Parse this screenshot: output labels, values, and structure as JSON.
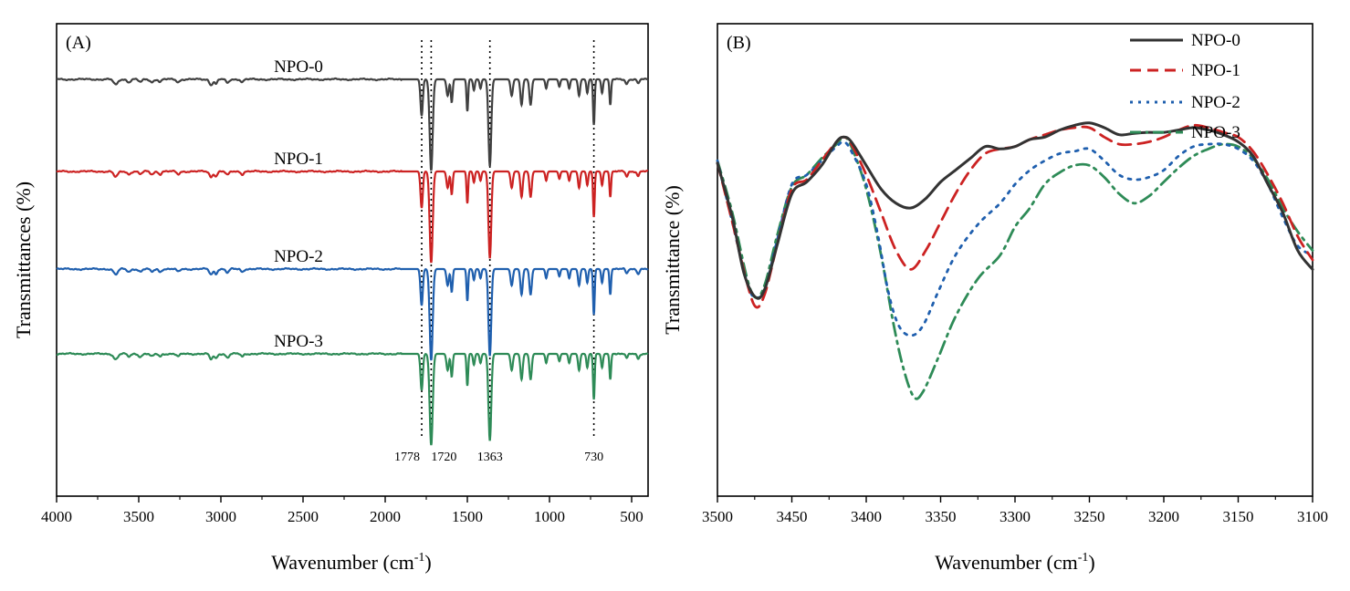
{
  "chart_data": [
    {
      "panel": "A",
      "type": "line",
      "panel_label": "(A)",
      "xlabel": "Wavenumber (cm",
      "xlabel_sup": "-1",
      "xlabel_close": ")",
      "ylabel": "Transmittances (%)",
      "xlim": [
        4000,
        400
      ],
      "x_reversed": true,
      "xticks": [
        4000,
        3500,
        3000,
        2500,
        2000,
        1500,
        1000,
        500
      ],
      "xtick_labels": [
        "4000",
        "3500",
        "3000",
        "2500",
        "2000",
        "1500",
        "1000",
        "500"
      ],
      "yticks": [],
      "legend": "inline labels above each offset trace",
      "reference_lines": [
        1778,
        1720,
        1363,
        730
      ],
      "annotations": [
        "1778",
        "1720",
        "1363",
        "730"
      ],
      "series": [
        {
          "name": "NPO-0",
          "label": "NPO-0",
          "color": "#404040",
          "offset": 3
        },
        {
          "name": "NPO-1",
          "label": "NPO-1",
          "color": "#cc2222",
          "offset": 2
        },
        {
          "name": "NPO-2",
          "label": "NPO-2",
          "color": "#1f5fae",
          "offset": 1
        },
        {
          "name": "NPO-3",
          "label": "NPO-3",
          "color": "#2e8b57",
          "offset": 0
        }
      ],
      "peaks": [
        {
          "x": 3640,
          "d": 0.06,
          "w": 18
        },
        {
          "x": 3560,
          "d": 0.03,
          "w": 15
        },
        {
          "x": 3490,
          "d": 0.03,
          "w": 15
        },
        {
          "x": 3420,
          "d": 0.03,
          "w": 15
        },
        {
          "x": 3370,
          "d": 0.03,
          "w": 12
        },
        {
          "x": 3260,
          "d": 0.03,
          "w": 14
        },
        {
          "x": 3060,
          "d": 0.06,
          "w": 14
        },
        {
          "x": 3030,
          "d": 0.05,
          "w": 12
        },
        {
          "x": 2960,
          "d": 0.04,
          "w": 14
        },
        {
          "x": 2870,
          "d": 0.03,
          "w": 12
        },
        {
          "x": 1778,
          "d": 0.4,
          "w": 10
        },
        {
          "x": 1720,
          "d": 1.0,
          "w": 13
        },
        {
          "x": 1620,
          "d": 0.18,
          "w": 10
        },
        {
          "x": 1595,
          "d": 0.25,
          "w": 8
        },
        {
          "x": 1500,
          "d": 0.35,
          "w": 7
        },
        {
          "x": 1460,
          "d": 0.12,
          "w": 8
        },
        {
          "x": 1420,
          "d": 0.1,
          "w": 8
        },
        {
          "x": 1363,
          "d": 0.95,
          "w": 12
        },
        {
          "x": 1230,
          "d": 0.18,
          "w": 10
        },
        {
          "x": 1170,
          "d": 0.28,
          "w": 10
        },
        {
          "x": 1115,
          "d": 0.28,
          "w": 10
        },
        {
          "x": 1020,
          "d": 0.1,
          "w": 8
        },
        {
          "x": 940,
          "d": 0.08,
          "w": 8
        },
        {
          "x": 880,
          "d": 0.1,
          "w": 8
        },
        {
          "x": 820,
          "d": 0.18,
          "w": 9
        },
        {
          "x": 770,
          "d": 0.15,
          "w": 8
        },
        {
          "x": 730,
          "d": 0.5,
          "w": 7
        },
        {
          "x": 680,
          "d": 0.15,
          "w": 8
        },
        {
          "x": 630,
          "d": 0.28,
          "w": 7
        },
        {
          "x": 530,
          "d": 0.05,
          "w": 10
        },
        {
          "x": 460,
          "d": 0.05,
          "w": 10
        }
      ]
    },
    {
      "panel": "B",
      "type": "line",
      "panel_label": "(B)",
      "xlabel": "Wavenumber (cm",
      "xlabel_sup": "-1",
      "xlabel_close": ")",
      "ylabel": "Transmittance (%)",
      "xlim": [
        3500,
        3100
      ],
      "x_reversed": true,
      "ylim": [
        0,
        100
      ],
      "xticks": [
        3500,
        3450,
        3400,
        3350,
        3300,
        3250,
        3200,
        3150,
        3100
      ],
      "xtick_labels": [
        "3500",
        "3450",
        "3400",
        "3350",
        "3300",
        "3250",
        "3200",
        "3150",
        "3100"
      ],
      "yticks": [],
      "legend": "top-right",
      "series": [
        {
          "name": "NPO-0",
          "label": "NPO-0",
          "color": "#333333",
          "dash": "solid",
          "points": [
            [
              3500,
              70.5
            ],
            [
              3490,
              59
            ],
            [
              3482,
              47
            ],
            [
              3474,
              42
            ],
            [
              3468,
              44
            ],
            [
              3460,
              53
            ],
            [
              3450,
              64
            ],
            [
              3440,
              66.5
            ],
            [
              3430,
              70
            ],
            [
              3420,
              75
            ],
            [
              3415,
              76
            ],
            [
              3410,
              75
            ],
            [
              3400,
              70
            ],
            [
              3390,
              65
            ],
            [
              3380,
              62
            ],
            [
              3370,
              61
            ],
            [
              3360,
              63
            ],
            [
              3350,
              66.5
            ],
            [
              3340,
              69
            ],
            [
              3330,
              71.5
            ],
            [
              3320,
              74
            ],
            [
              3310,
              73.5
            ],
            [
              3300,
              74
            ],
            [
              3290,
              75.5
            ],
            [
              3280,
              76
            ],
            [
              3270,
              77.5
            ],
            [
              3260,
              78.5
            ],
            [
              3250,
              79
            ],
            [
              3240,
              78
            ],
            [
              3230,
              76.5
            ],
            [
              3220,
              76.8
            ],
            [
              3210,
              77
            ],
            [
              3200,
              77
            ],
            [
              3190,
              77.5
            ],
            [
              3180,
              78
            ],
            [
              3170,
              77.5
            ],
            [
              3160,
              76.5
            ],
            [
              3150,
              75
            ],
            [
              3140,
              72
            ],
            [
              3130,
              66
            ],
            [
              3120,
              60
            ],
            [
              3110,
              52
            ],
            [
              3100,
              48
            ]
          ]
        },
        {
          "name": "NPO-1",
          "label": "NPO-1",
          "color": "#cc2222",
          "dash": "dashed",
          "points": [
            [
              3500,
              70.5
            ],
            [
              3490,
              58
            ],
            [
              3480,
              45
            ],
            [
              3474,
              40
            ],
            [
              3468,
              43
            ],
            [
              3460,
              53
            ],
            [
              3450,
              65
            ],
            [
              3440,
              67
            ],
            [
              3430,
              71
            ],
            [
              3420,
              75
            ],
            [
              3415,
              76
            ],
            [
              3410,
              74.5
            ],
            [
              3400,
              68
            ],
            [
              3390,
              60
            ],
            [
              3380,
              52
            ],
            [
              3370,
              48
            ],
            [
              3360,
              52
            ],
            [
              3350,
              58
            ],
            [
              3340,
              64
            ],
            [
              3330,
              69
            ],
            [
              3320,
              72.5
            ],
            [
              3310,
              73.5
            ],
            [
              3300,
              74
            ],
            [
              3290,
              75.5
            ],
            [
              3280,
              76.5
            ],
            [
              3270,
              77.5
            ],
            [
              3260,
              78
            ],
            [
              3250,
              78
            ],
            [
              3240,
              76
            ],
            [
              3230,
              74.5
            ],
            [
              3220,
              74.5
            ],
            [
              3210,
              75
            ],
            [
              3200,
              76
            ],
            [
              3190,
              77.5
            ],
            [
              3180,
              78.5
            ],
            [
              3170,
              78
            ],
            [
              3160,
              77
            ],
            [
              3150,
              76
            ],
            [
              3140,
              73
            ],
            [
              3130,
              68
            ],
            [
              3120,
              62
            ],
            [
              3110,
              55
            ],
            [
              3100,
              50
            ]
          ]
        },
        {
          "name": "NPO-2",
          "label": "NPO-2",
          "color": "#1f5fae",
          "dash": "dotted",
          "points": [
            [
              3500,
              71
            ],
            [
              3490,
              58
            ],
            [
              3480,
              45
            ],
            [
              3474,
              42
            ],
            [
              3468,
              44
            ],
            [
              3460,
              54
            ],
            [
              3450,
              66
            ],
            [
              3440,
              68
            ],
            [
              3430,
              71
            ],
            [
              3420,
              74
            ],
            [
              3415,
              75
            ],
            [
              3410,
              73
            ],
            [
              3400,
              66
            ],
            [
              3392,
              55
            ],
            [
              3385,
              43
            ],
            [
              3378,
              36
            ],
            [
              3370,
              34
            ],
            [
              3362,
              36
            ],
            [
              3352,
              43
            ],
            [
              3340,
              51
            ],
            [
              3325,
              57.5
            ],
            [
              3310,
              62
            ],
            [
              3300,
              66
            ],
            [
              3290,
              69
            ],
            [
              3280,
              71
            ],
            [
              3270,
              72.5
            ],
            [
              3260,
              73
            ],
            [
              3250,
              73.5
            ],
            [
              3240,
              71
            ],
            [
              3230,
              68
            ],
            [
              3220,
              67
            ],
            [
              3210,
              67.5
            ],
            [
              3200,
              69
            ],
            [
              3190,
              72
            ],
            [
              3180,
              74
            ],
            [
              3170,
              74.5
            ],
            [
              3160,
              74.5
            ],
            [
              3150,
              73.5
            ],
            [
              3140,
              71
            ],
            [
              3130,
              66
            ],
            [
              3120,
              59
            ],
            [
              3110,
              53
            ],
            [
              3100,
              51
            ]
          ]
        },
        {
          "name": "NPO-3",
          "label": "NPO-3",
          "color": "#2e8b57",
          "dash": "dashdot",
          "points": [
            [
              3500,
              71
            ],
            [
              3490,
              60
            ],
            [
              3480,
              46
            ],
            [
              3474,
              42
            ],
            [
              3468,
              45
            ],
            [
              3460,
              55
            ],
            [
              3450,
              65.5
            ],
            [
              3440,
              68
            ],
            [
              3430,
              71.5
            ],
            [
              3420,
              74.5
            ],
            [
              3415,
              76
            ],
            [
              3410,
              74
            ],
            [
              3400,
              65
            ],
            [
              3390,
              51
            ],
            [
              3382,
              37
            ],
            [
              3375,
              27
            ],
            [
              3368,
              21
            ],
            [
              3362,
              22
            ],
            [
              3352,
              29
            ],
            [
              3340,
              38
            ],
            [
              3325,
              46
            ],
            [
              3310,
              51
            ],
            [
              3300,
              57
            ],
            [
              3290,
              61
            ],
            [
              3280,
              66
            ],
            [
              3270,
              68.5
            ],
            [
              3260,
              70
            ],
            [
              3250,
              70
            ],
            [
              3240,
              67.5
            ],
            [
              3230,
              64
            ],
            [
              3220,
              62
            ],
            [
              3210,
              63.5
            ],
            [
              3200,
              66.5
            ],
            [
              3190,
              69.5
            ],
            [
              3180,
              72
            ],
            [
              3170,
              73.5
            ],
            [
              3160,
              74.5
            ],
            [
              3150,
              74
            ],
            [
              3140,
              71.5
            ],
            [
              3130,
              67
            ],
            [
              3120,
              61
            ],
            [
              3110,
              56
            ],
            [
              3100,
              52
            ]
          ]
        }
      ]
    }
  ]
}
